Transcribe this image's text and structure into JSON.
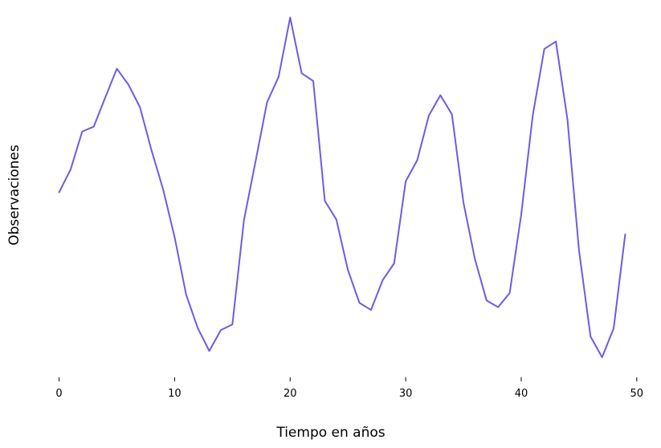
{
  "chart_data": {
    "type": "line",
    "title": "",
    "xlabel": "Tiempo en años",
    "ylabel": "Observaciones",
    "xlim": [
      -1.5,
      50.5
    ],
    "ylim": [
      0,
      100
    ],
    "grid": false,
    "y_ticks_visible": false,
    "x_ticks": [
      0,
      10,
      20,
      30,
      40,
      50
    ],
    "line_color": "#6e5be6",
    "series": [
      {
        "x": [
          0,
          1,
          2,
          3,
          4,
          5,
          6,
          7,
          8,
          9,
          10,
          11,
          12,
          13,
          14,
          15,
          16,
          17,
          18,
          19,
          20,
          21,
          22,
          23,
          24,
          25,
          26,
          27,
          28,
          29,
          30,
          31,
          32,
          33,
          34,
          35,
          36,
          37,
          38,
          39,
          40,
          41,
          42,
          43,
          44,
          45,
          46,
          47,
          48,
          49
        ],
        "values": [
          50.1,
          56.6,
          67.3,
          68.7,
          77.0,
          85.1,
          80.6,
          74.2,
          62.0,
          51.0,
          37.4,
          21.1,
          11.7,
          5.2,
          11.1,
          12.7,
          42.2,
          58.8,
          75.6,
          82.8,
          99.6,
          83.8,
          81.6,
          47.7,
          42.4,
          28.1,
          18.8,
          16.8,
          25.2,
          30.0,
          53.2,
          59.2,
          71.8,
          77.6,
          72.2,
          47.2,
          31.1,
          19.5,
          17.6,
          21.6,
          43.8,
          71.9,
          90.7,
          92.8,
          70.8,
          33.7,
          9.3,
          3.4,
          11.6,
          38.2
        ]
      }
    ]
  }
}
